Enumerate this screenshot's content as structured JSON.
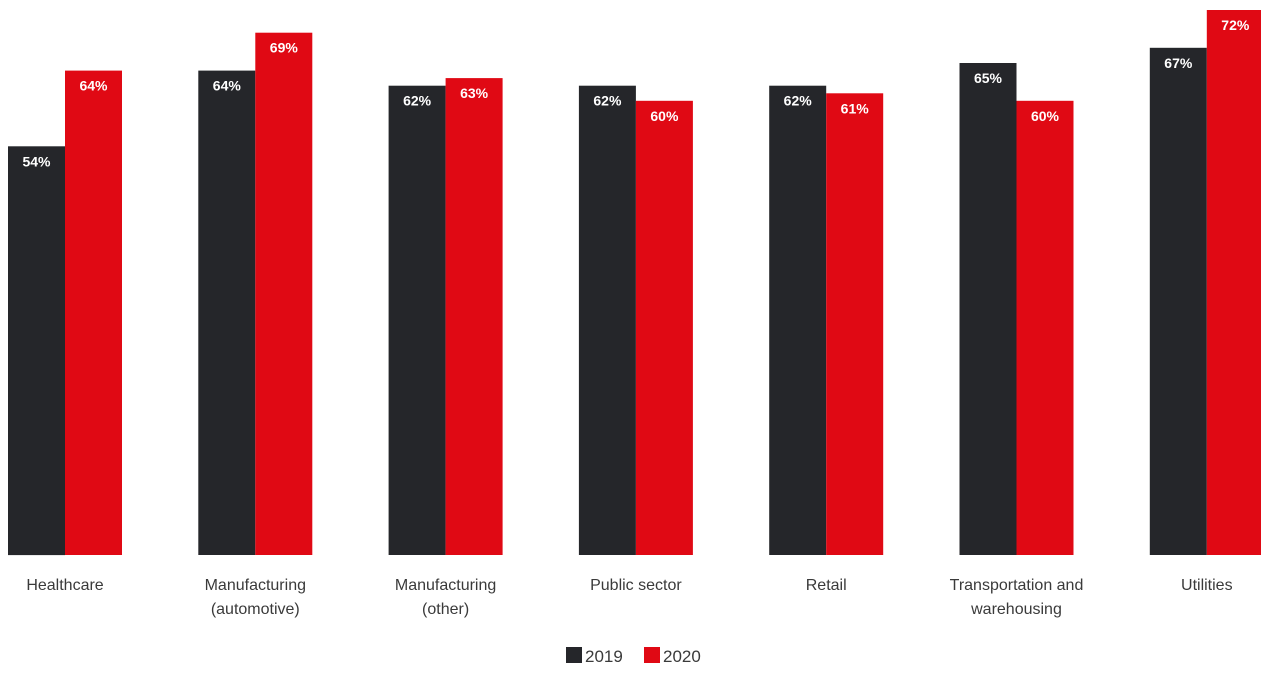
{
  "chart_data": {
    "type": "bar",
    "categories": [
      [
        "Healthcare"
      ],
      [
        "Manufacturing",
        "(automotive)"
      ],
      [
        "Manufacturing",
        "(other)"
      ],
      [
        "Public sector"
      ],
      [
        "Retail"
      ],
      [
        "Transportation and",
        "warehousing"
      ],
      [
        "Utilities"
      ]
    ],
    "series": [
      {
        "name": "2019",
        "color": "#25262a",
        "values": [
          54,
          64,
          62,
          62,
          62,
          65,
          67
        ],
        "labels": [
          "54%",
          "64%",
          "62%",
          "62%",
          "62%",
          "65%",
          "67%"
        ]
      },
      {
        "name": "2020",
        "color": "#e00914",
        "values": [
          64,
          69,
          63,
          60,
          61,
          60,
          72
        ],
        "labels": [
          "64%",
          "69%",
          "63%",
          "60%",
          "61%",
          "60%",
          "72%"
        ]
      }
    ],
    "ylim": [
      0,
      72
    ],
    "grid": false,
    "legend_position": "bottom-center",
    "title": "",
    "xlabel": "",
    "ylabel": ""
  }
}
